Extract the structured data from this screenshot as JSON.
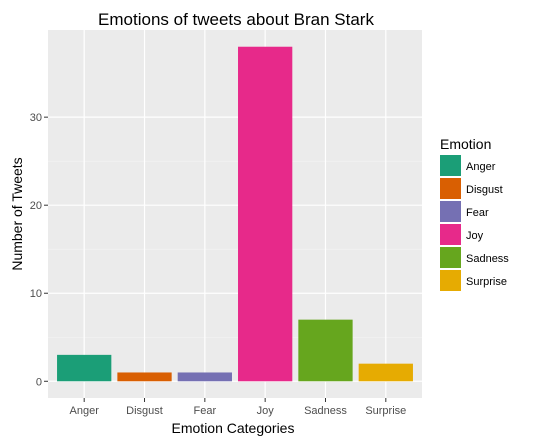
{
  "chart_data": {
    "type": "bar",
    "title": "Emotions of tweets about Bran Stark",
    "xlabel": "Emotion Categories",
    "ylabel": "Number of Tweets",
    "categories": [
      "Anger",
      "Disgust",
      "Fear",
      "Joy",
      "Sadness",
      "Surprise"
    ],
    "values": [
      3,
      1,
      1,
      38,
      7,
      2
    ],
    "colors": [
      "#1b9e77",
      "#d95f02",
      "#7570b3",
      "#e7298a",
      "#66a61e",
      "#e6ab02"
    ],
    "yticks": [
      0,
      10,
      20,
      30
    ],
    "ylim": [
      -1.9,
      39.9
    ],
    "grid": true,
    "panel_background": "#ebebeb",
    "legend": {
      "title": "Emotion",
      "position": "right",
      "entries": [
        "Anger",
        "Disgust",
        "Fear",
        "Joy",
        "Sadness",
        "Surprise"
      ]
    }
  }
}
